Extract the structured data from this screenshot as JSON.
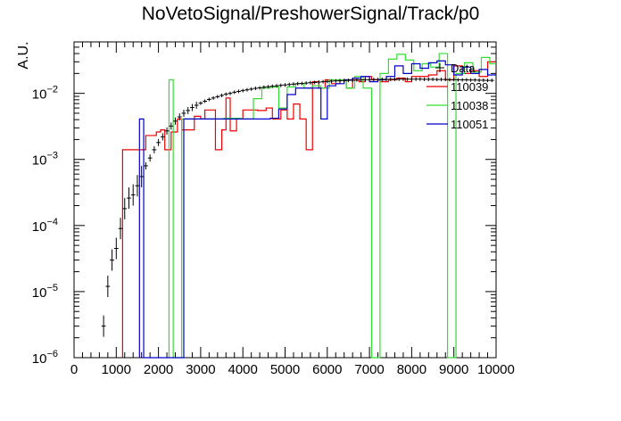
{
  "chart_data": {
    "type": "histogram",
    "title": "NoVetoSignal/PreshowerSignal/Track/p0",
    "ylabel": "A.U.",
    "xlabel": "",
    "xlim": [
      0,
      10000
    ],
    "ylim": [
      1e-06,
      0.06
    ],
    "y_scale": "log",
    "grid": false,
    "legend_position": "top-right",
    "x_ticks": [
      "0",
      "1000",
      "2000",
      "3000",
      "4000",
      "5000",
      "6000",
      "7000",
      "8000",
      "9000",
      "10000"
    ],
    "y_ticks": [
      {
        "base": "10",
        "exp": "−6",
        "value": 1e-06
      },
      {
        "base": "10",
        "exp": "−5",
        "value": 1e-05
      },
      {
        "base": "10",
        "exp": "−4",
        "value": 0.0001
      },
      {
        "base": "10",
        "exp": "−3",
        "value": 0.001
      },
      {
        "base": "10",
        "exp": "−2",
        "value": 0.01
      }
    ],
    "data_series": {
      "name": "Data",
      "color": "#000000",
      "points": [
        [
          700,
          3e-06
        ],
        [
          800,
          1.2e-05
        ],
        [
          900,
          3e-05
        ],
        [
          1000,
          4.5e-05
        ],
        [
          1100,
          9e-05
        ],
        [
          1200,
          0.00018
        ],
        [
          1300,
          0.00026
        ],
        [
          1400,
          0.00029
        ],
        [
          1500,
          0.0004
        ],
        [
          1600,
          0.00055
        ],
        [
          1700,
          0.0008
        ],
        [
          1800,
          0.00105
        ],
        [
          1900,
          0.0014
        ],
        [
          2000,
          0.0018
        ],
        [
          2100,
          0.0022
        ],
        [
          2200,
          0.0027
        ],
        [
          2300,
          0.0032
        ],
        [
          2400,
          0.0038
        ],
        [
          2500,
          0.0044
        ],
        [
          2600,
          0.005
        ],
        [
          2700,
          0.0055
        ],
        [
          2800,
          0.0061
        ],
        [
          2900,
          0.0066
        ],
        [
          3000,
          0.0071
        ],
        [
          3100,
          0.0076
        ],
        [
          3200,
          0.0081
        ],
        [
          3300,
          0.0085
        ],
        [
          3400,
          0.0089
        ],
        [
          3500,
          0.0093
        ],
        [
          3600,
          0.0097
        ],
        [
          3700,
          0.01
        ],
        [
          3800,
          0.0104
        ],
        [
          3900,
          0.0107
        ],
        [
          4000,
          0.011
        ],
        [
          4100,
          0.0113
        ],
        [
          4200,
          0.0116
        ],
        [
          4300,
          0.0119
        ],
        [
          4400,
          0.0121
        ],
        [
          4500,
          0.0124
        ],
        [
          4600,
          0.0126
        ],
        [
          4700,
          0.0128
        ],
        [
          4800,
          0.013
        ],
        [
          4900,
          0.0132
        ],
        [
          5000,
          0.0134
        ],
        [
          5100,
          0.0136
        ],
        [
          5200,
          0.0138
        ],
        [
          5300,
          0.014
        ],
        [
          5400,
          0.0141
        ],
        [
          5500,
          0.0143
        ],
        [
          5600,
          0.0145
        ],
        [
          5700,
          0.0146
        ],
        [
          5800,
          0.0148
        ],
        [
          5900,
          0.015
        ],
        [
          6000,
          0.0151
        ],
        [
          6100,
          0.0153
        ],
        [
          6200,
          0.0154
        ],
        [
          6300,
          0.0155
        ],
        [
          6400,
          0.0156
        ],
        [
          6500,
          0.0157
        ],
        [
          6600,
          0.0158
        ],
        [
          6700,
          0.0159
        ],
        [
          6800,
          0.016
        ],
        [
          6900,
          0.0161
        ],
        [
          7000,
          0.0161
        ],
        [
          7100,
          0.0162
        ],
        [
          7200,
          0.0162
        ],
        [
          7300,
          0.0163
        ],
        [
          7400,
          0.0163
        ],
        [
          7500,
          0.0163
        ],
        [
          7600,
          0.0164
        ],
        [
          7700,
          0.0164
        ],
        [
          7800,
          0.0164
        ],
        [
          7900,
          0.0164
        ],
        [
          8000,
          0.0164
        ],
        [
          8100,
          0.0164
        ],
        [
          8200,
          0.0164
        ],
        [
          8300,
          0.0163
        ],
        [
          8400,
          0.0163
        ],
        [
          8500,
          0.0163
        ],
        [
          8600,
          0.0162
        ],
        [
          8700,
          0.0162
        ],
        [
          8800,
          0.0162
        ],
        [
          8900,
          0.0161
        ],
        [
          9000,
          0.0161
        ],
        [
          9100,
          0.016
        ],
        [
          9200,
          0.016
        ],
        [
          9300,
          0.016
        ],
        [
          9400,
          0.0159
        ],
        [
          9500,
          0.0159
        ],
        [
          9600,
          0.0158
        ],
        [
          9700,
          0.0158
        ],
        [
          9800,
          0.0157
        ],
        [
          9900,
          0.0157
        ]
      ]
    },
    "series": [
      {
        "name": "110039",
        "color": "#ee0000",
        "bins": [
          [
            1150,
            0.0014
          ],
          [
            1400,
            0.0014
          ],
          [
            1700,
            0.0023
          ],
          [
            1950,
            0.0026
          ],
          [
            2050,
            0.0028
          ],
          [
            2150,
            0.0014
          ],
          [
            2300,
            0.0026
          ],
          [
            2450,
            0.0041
          ],
          [
            2550,
            0.0028
          ],
          [
            2650,
            0.0028
          ],
          [
            2750,
            0.0028
          ],
          [
            2850,
            0.0045
          ],
          [
            3000,
            0.0041
          ],
          [
            3100,
            0.0056
          ],
          [
            3200,
            0.0056
          ],
          [
            3350,
            0.0014
          ],
          [
            3500,
            0.0028
          ],
          [
            3600,
            0.0085
          ],
          [
            3700,
            0.0027
          ],
          [
            3850,
            0.0041
          ],
          [
            4000,
            0.0056
          ],
          [
            4150,
            0.0056
          ],
          [
            4350,
            0.0055
          ],
          [
            4550,
            0.006
          ],
          [
            4700,
            0.0041
          ],
          [
            4900,
            0.0056
          ],
          [
            5050,
            0.0041
          ],
          [
            5200,
            0.0069
          ],
          [
            5350,
            0.0041
          ],
          [
            5500,
            0.0014
          ],
          [
            5650,
            0.015
          ],
          [
            5800,
            0.012
          ],
          [
            5950,
            0.016
          ],
          [
            6100,
            0.014
          ],
          [
            6300,
            0.016
          ],
          [
            6450,
            0.012
          ],
          [
            6600,
            0.016
          ],
          [
            6750,
            0.015
          ],
          [
            6900,
            0.018
          ],
          [
            7050,
            0.016
          ],
          [
            7250,
            0.015
          ],
          [
            7450,
            0.016
          ],
          [
            7650,
            0.017
          ],
          [
            7850,
            0.015
          ],
          [
            8000,
            0.018
          ],
          [
            8200,
            0.018
          ],
          [
            8400,
            0.019
          ],
          [
            8600,
            0.022
          ],
          [
            8800,
            0.016
          ],
          [
            9000,
            0.026
          ],
          [
            9200,
            0.02
          ],
          [
            9400,
            0.022
          ],
          [
            9600,
            0.018
          ],
          [
            9800,
            0.03
          ]
        ]
      },
      {
        "name": "110038",
        "color": "#33dd33",
        "bins": [
          [
            2250,
            0.016
          ],
          [
            2350,
            1e-06
          ],
          [
            2550,
            0.0041
          ],
          [
            2850,
            0.0041
          ],
          [
            3250,
            0.0041
          ],
          [
            3550,
            0.0042
          ],
          [
            3950,
            0.0041
          ],
          [
            4250,
            0.0083
          ],
          [
            4450,
            0.012
          ],
          [
            4650,
            0.0125
          ],
          [
            4850,
            0.006
          ],
          [
            5050,
            0.0125
          ],
          [
            5250,
            0.014
          ],
          [
            5450,
            0.012
          ],
          [
            5650,
            0.013
          ],
          [
            5850,
            0.012
          ],
          [
            6050,
            0.016
          ],
          [
            6250,
            0.016
          ],
          [
            6450,
            0.012
          ],
          [
            6650,
            0.018
          ],
          [
            6850,
            0.012
          ],
          [
            7050,
            1e-06
          ],
          [
            7250,
            0.02
          ],
          [
            7450,
            0.033
          ],
          [
            7650,
            0.039
          ],
          [
            7850,
            0.032
          ],
          [
            8050,
            0.022
          ],
          [
            8250,
            0.028
          ],
          [
            8450,
            0.025
          ],
          [
            8650,
            0.04
          ],
          [
            8850,
            1e-06
          ],
          [
            9050,
            0.02
          ],
          [
            9250,
            0.029
          ],
          [
            9450,
            0.021
          ],
          [
            9650,
            0.035
          ],
          [
            9850,
            0.028
          ]
        ]
      },
      {
        "name": "110051",
        "color": "#0000cc",
        "bins": [
          [
            1550,
            0.0041
          ],
          [
            1650,
            1e-06
          ],
          [
            2600,
            0.0041
          ],
          [
            3150,
            0.0041
          ],
          [
            3800,
            0.0041
          ],
          [
            4350,
            0.0041
          ],
          [
            4650,
            0.0042
          ],
          [
            4850,
            0.0058
          ],
          [
            5050,
            0.0096
          ],
          [
            5250,
            0.012
          ],
          [
            5450,
            0.012
          ],
          [
            5650,
            0.012
          ],
          [
            5850,
            0.0041
          ],
          [
            6000,
            0.013
          ],
          [
            6200,
            0.014
          ],
          [
            6400,
            0.016
          ],
          [
            6600,
            0.017
          ],
          [
            6800,
            0.018
          ],
          [
            7000,
            0.015
          ],
          [
            7200,
            0.016
          ],
          [
            7400,
            0.018
          ],
          [
            7600,
            0.026
          ],
          [
            7800,
            0.02
          ],
          [
            8000,
            0.028
          ],
          [
            8200,
            0.024
          ],
          [
            8400,
            0.029
          ],
          [
            8600,
            0.031
          ],
          [
            8800,
            0.027
          ],
          [
            9000,
            0.019
          ],
          [
            9200,
            0.025
          ],
          [
            9400,
            0.02
          ],
          [
            9600,
            0.023
          ],
          [
            9800,
            0.019
          ]
        ]
      }
    ]
  }
}
